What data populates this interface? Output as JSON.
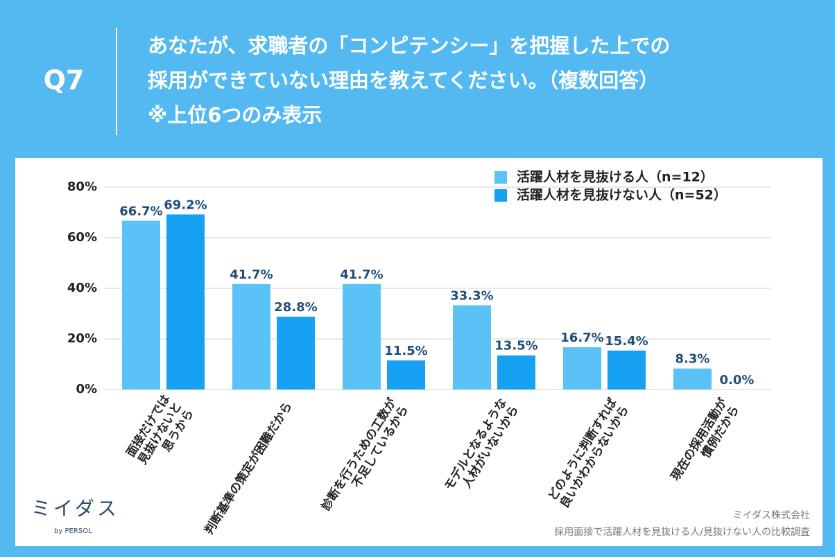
{
  "header": {
    "label": "Q7",
    "title_lines": [
      "あなたが、求職者の「コンピテンシー」を把握した上での",
      "採用ができていない理由を教えてください。（複数回答）",
      "※上位6つのみ表示"
    ]
  },
  "chart_data": {
    "type": "bar",
    "categories": [
      [
        "面接だけでは",
        "見抜けないと",
        "思うから"
      ],
      [
        "判断基準の策定が困難だから"
      ],
      [
        "診断を行うための工数が",
        "不足しているから"
      ],
      [
        "モデルとなるような",
        "人材がいないから"
      ],
      [
        "どのように判断すれば",
        "良いかわからないから"
      ],
      [
        "現在の採用活動が",
        "慣例だから"
      ]
    ],
    "series": [
      {
        "name": "活躍人材を見抜ける人（n=12）",
        "color": "#5bc2f7",
        "values": [
          66.7,
          41.7,
          41.7,
          33.3,
          16.7,
          8.3
        ],
        "value_labels": [
          "66.7%",
          "41.7%",
          "41.7%",
          "33.3%",
          "16.7%",
          "8.3%"
        ]
      },
      {
        "name": "活躍人材を見抜けない人（n=52）",
        "color": "#16a1f2",
        "values": [
          69.2,
          28.8,
          11.5,
          13.5,
          15.4,
          0.0
        ],
        "value_labels": [
          "69.2%",
          "28.8%",
          "11.5%",
          "13.5%",
          "15.4%",
          "0.0%"
        ]
      }
    ],
    "ylim": [
      0,
      80
    ],
    "yticks": [
      {
        "value": 0,
        "label": "0%"
      },
      {
        "value": 20,
        "label": "20%"
      },
      {
        "value": 40,
        "label": "40%"
      },
      {
        "value": 60,
        "label": "60%"
      },
      {
        "value": 80,
        "label": "80%"
      }
    ],
    "grid": true,
    "legend": "top-right"
  },
  "footer": {
    "logo": "ミイダス",
    "logo_sub": "by PERSOL",
    "source_lines": [
      "ミイダス株式会社",
      "採用面接で活躍人材を見抜ける人/見抜けない人の比較調査"
    ]
  }
}
